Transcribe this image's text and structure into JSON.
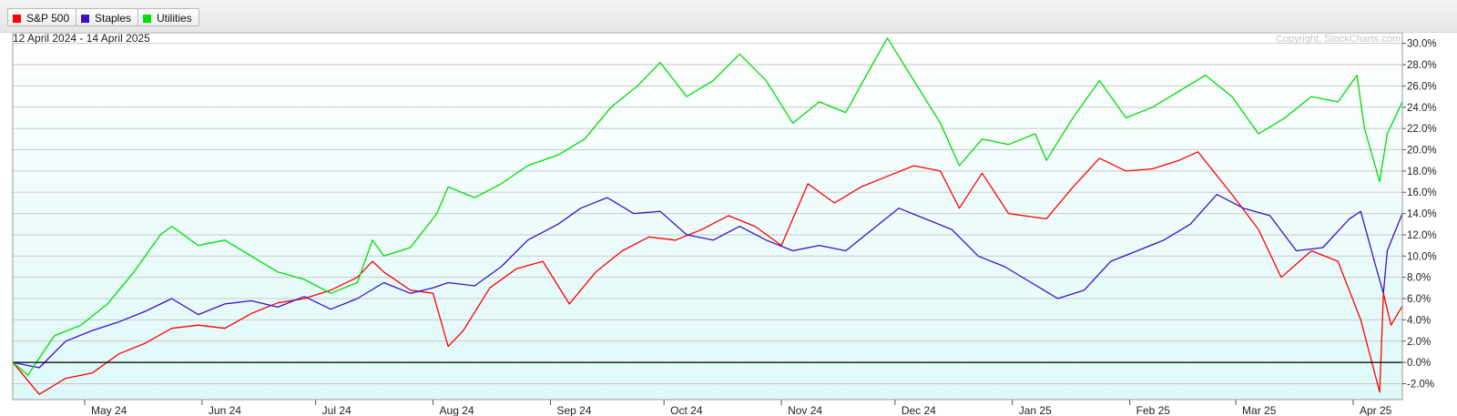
{
  "legend": [
    {
      "name": "S&P 500",
      "color": "#ff0000"
    },
    {
      "name": "Staples",
      "color": "#3a10c8"
    },
    {
      "name": "Utilities",
      "color": "#00dd00"
    }
  ],
  "chart_data": {
    "type": "line",
    "date_range": "12 April 2024 - 14 April 2025",
    "copyright": "Copyright, StockCharts.com",
    "y_unit": "percent change",
    "ylim": [
      -3.5,
      31.0
    ],
    "y_ticks": [
      -2,
      0,
      2,
      4,
      6,
      8,
      10,
      12,
      14,
      16,
      18,
      20,
      22,
      24,
      26,
      28,
      30
    ],
    "y_tick_labels": [
      "-2.0%",
      "0.0%",
      "2.0%",
      "4.0%",
      "6.0%",
      "8.0%",
      "10.0%",
      "12.0%",
      "14.0%",
      "16.0%",
      "18.0%",
      "20.0%",
      "22.0%",
      "24.0%",
      "26.0%",
      "28.0%",
      "30.0%"
    ],
    "baseline": 0,
    "x_range": [
      "2024-04-12",
      "2025-04-14"
    ],
    "x_ticks": [
      {
        "date": "2024-05-01",
        "label": "May 24"
      },
      {
        "date": "2024-06-01",
        "label": "Jun 24"
      },
      {
        "date": "2024-07-01",
        "label": "Jul 24"
      },
      {
        "date": "2024-08-01",
        "label": "Aug 24"
      },
      {
        "date": "2024-09-01",
        "label": "Sep 24"
      },
      {
        "date": "2024-10-01",
        "label": "Oct 24"
      },
      {
        "date": "2024-11-01",
        "label": "Nov 24"
      },
      {
        "date": "2024-12-01",
        "label": "Dec 24"
      },
      {
        "date": "2025-01-01",
        "label": "Jan 25"
      },
      {
        "date": "2025-02-01",
        "label": "Feb 25"
      },
      {
        "date": "2025-03-01",
        "label": "Mar 25"
      },
      {
        "date": "2025-04-01",
        "label": "Apr 25"
      }
    ],
    "grid": true,
    "legend_position": "top-left",
    "series": [
      {
        "name": "S&P 500",
        "color": "#ff0000",
        "points": [
          [
            "2024-04-12",
            0
          ],
          [
            "2024-04-19",
            -3
          ],
          [
            "2024-04-26",
            -1.5
          ],
          [
            "2024-05-03",
            -1
          ],
          [
            "2024-05-10",
            0.8
          ],
          [
            "2024-05-17",
            1.8
          ],
          [
            "2024-05-24",
            3.2
          ],
          [
            "2024-05-31",
            3.5
          ],
          [
            "2024-06-07",
            3.2
          ],
          [
            "2024-06-14",
            4.6
          ],
          [
            "2024-06-21",
            5.6
          ],
          [
            "2024-06-28",
            6.0
          ],
          [
            "2024-07-05",
            6.8
          ],
          [
            "2024-07-12",
            8.0
          ],
          [
            "2024-07-16",
            9.5
          ],
          [
            "2024-07-19",
            8.5
          ],
          [
            "2024-07-26",
            6.8
          ],
          [
            "2024-08-01",
            6.5
          ],
          [
            "2024-08-05",
            1.5
          ],
          [
            "2024-08-09",
            3.0
          ],
          [
            "2024-08-16",
            7.0
          ],
          [
            "2024-08-23",
            8.8
          ],
          [
            "2024-08-30",
            9.5
          ],
          [
            "2024-09-06",
            5.5
          ],
          [
            "2024-09-13",
            8.5
          ],
          [
            "2024-09-20",
            10.5
          ],
          [
            "2024-09-27",
            11.8
          ],
          [
            "2024-10-04",
            11.5
          ],
          [
            "2024-10-11",
            12.5
          ],
          [
            "2024-10-18",
            13.8
          ],
          [
            "2024-10-25",
            12.8
          ],
          [
            "2024-11-01",
            11.0
          ],
          [
            "2024-11-08",
            16.8
          ],
          [
            "2024-11-15",
            15.0
          ],
          [
            "2024-11-22",
            16.5
          ],
          [
            "2024-11-29",
            17.5
          ],
          [
            "2024-12-06",
            18.5
          ],
          [
            "2024-12-13",
            18.0
          ],
          [
            "2024-12-18",
            14.5
          ],
          [
            "2024-12-24",
            17.8
          ],
          [
            "2024-12-31",
            14.0
          ],
          [
            "2025-01-10",
            13.5
          ],
          [
            "2025-01-17",
            16.5
          ],
          [
            "2025-01-24",
            19.2
          ],
          [
            "2025-01-31",
            18.0
          ],
          [
            "2025-02-07",
            18.2
          ],
          [
            "2025-02-14",
            19.0
          ],
          [
            "2025-02-19",
            19.8
          ],
          [
            "2025-02-28",
            15.8
          ],
          [
            "2025-03-07",
            12.5
          ],
          [
            "2025-03-13",
            8.0
          ],
          [
            "2025-03-21",
            10.5
          ],
          [
            "2025-03-28",
            9.5
          ],
          [
            "2025-04-03",
            4.0
          ],
          [
            "2025-04-08",
            -2.8
          ],
          [
            "2025-04-09",
            6.5
          ],
          [
            "2025-04-11",
            3.5
          ],
          [
            "2025-04-14",
            5.3
          ]
        ]
      },
      {
        "name": "Staples",
        "color": "#3a10c8",
        "points": [
          [
            "2024-04-12",
            0
          ],
          [
            "2024-04-19",
            -0.5
          ],
          [
            "2024-04-26",
            2.0
          ],
          [
            "2024-05-03",
            3.0
          ],
          [
            "2024-05-10",
            3.8
          ],
          [
            "2024-05-17",
            4.8
          ],
          [
            "2024-05-24",
            6.0
          ],
          [
            "2024-05-31",
            4.5
          ],
          [
            "2024-06-07",
            5.5
          ],
          [
            "2024-06-14",
            5.8
          ],
          [
            "2024-06-21",
            5.2
          ],
          [
            "2024-06-28",
            6.2
          ],
          [
            "2024-07-05",
            5.0
          ],
          [
            "2024-07-12",
            6.0
          ],
          [
            "2024-07-19",
            7.5
          ],
          [
            "2024-07-26",
            6.5
          ],
          [
            "2024-08-01",
            7.0
          ],
          [
            "2024-08-05",
            7.5
          ],
          [
            "2024-08-12",
            7.2
          ],
          [
            "2024-08-19",
            9.0
          ],
          [
            "2024-08-26",
            11.5
          ],
          [
            "2024-09-03",
            13.0
          ],
          [
            "2024-09-09",
            14.5
          ],
          [
            "2024-09-16",
            15.5
          ],
          [
            "2024-09-23",
            14.0
          ],
          [
            "2024-09-30",
            14.2
          ],
          [
            "2024-10-07",
            12.0
          ],
          [
            "2024-10-14",
            11.5
          ],
          [
            "2024-10-21",
            12.8
          ],
          [
            "2024-10-28",
            11.5
          ],
          [
            "2024-11-04",
            10.5
          ],
          [
            "2024-11-11",
            11.0
          ],
          [
            "2024-11-18",
            10.5
          ],
          [
            "2024-11-25",
            12.5
          ],
          [
            "2024-12-02",
            14.5
          ],
          [
            "2024-12-09",
            13.5
          ],
          [
            "2024-12-16",
            12.5
          ],
          [
            "2024-12-23",
            10.0
          ],
          [
            "2024-12-30",
            9.0
          ],
          [
            "2025-01-06",
            7.5
          ],
          [
            "2025-01-13",
            6.0
          ],
          [
            "2025-01-20",
            6.8
          ],
          [
            "2025-01-27",
            9.5
          ],
          [
            "2025-02-03",
            10.5
          ],
          [
            "2025-02-10",
            11.5
          ],
          [
            "2025-02-17",
            13.0
          ],
          [
            "2025-02-24",
            15.8
          ],
          [
            "2025-03-03",
            14.5
          ],
          [
            "2025-03-10",
            13.8
          ],
          [
            "2025-03-17",
            10.5
          ],
          [
            "2025-03-24",
            10.8
          ],
          [
            "2025-03-31",
            13.5
          ],
          [
            "2025-04-03",
            14.2
          ],
          [
            "2025-04-07",
            9.0
          ],
          [
            "2025-04-09",
            6.5
          ],
          [
            "2025-04-10",
            10.5
          ],
          [
            "2025-04-14",
            14.0
          ]
        ]
      },
      {
        "name": "Utilities",
        "color": "#00dd00",
        "points": [
          [
            "2024-04-12",
            0
          ],
          [
            "2024-04-16",
            -1.2
          ],
          [
            "2024-04-23",
            2.5
          ],
          [
            "2024-04-30",
            3.5
          ],
          [
            "2024-05-07",
            5.5
          ],
          [
            "2024-05-14",
            8.5
          ],
          [
            "2024-05-21",
            12.0
          ],
          [
            "2024-05-24",
            12.8
          ],
          [
            "2024-05-31",
            11.0
          ],
          [
            "2024-06-07",
            11.5
          ],
          [
            "2024-06-14",
            10.0
          ],
          [
            "2024-06-21",
            8.5
          ],
          [
            "2024-06-28",
            7.8
          ],
          [
            "2024-07-05",
            6.5
          ],
          [
            "2024-07-12",
            7.5
          ],
          [
            "2024-07-16",
            11.5
          ],
          [
            "2024-07-19",
            10.0
          ],
          [
            "2024-07-26",
            10.8
          ],
          [
            "2024-08-02",
            14.0
          ],
          [
            "2024-08-05",
            16.5
          ],
          [
            "2024-08-12",
            15.5
          ],
          [
            "2024-08-19",
            16.8
          ],
          [
            "2024-08-26",
            18.5
          ],
          [
            "2024-09-03",
            19.5
          ],
          [
            "2024-09-10",
            21.0
          ],
          [
            "2024-09-17",
            24.0
          ],
          [
            "2024-09-24",
            26.0
          ],
          [
            "2024-09-30",
            28.2
          ],
          [
            "2024-10-07",
            25.0
          ],
          [
            "2024-10-14",
            26.5
          ],
          [
            "2024-10-21",
            29.0
          ],
          [
            "2024-10-28",
            26.5
          ],
          [
            "2024-11-04",
            22.5
          ],
          [
            "2024-11-11",
            24.5
          ],
          [
            "2024-11-18",
            23.5
          ],
          [
            "2024-11-25",
            28.0
          ],
          [
            "2024-11-29",
            30.5
          ],
          [
            "2024-12-06",
            26.5
          ],
          [
            "2024-12-13",
            22.5
          ],
          [
            "2024-12-18",
            18.5
          ],
          [
            "2024-12-24",
            21.0
          ],
          [
            "2024-12-31",
            20.5
          ],
          [
            "2025-01-07",
            21.5
          ],
          [
            "2025-01-10",
            19.0
          ],
          [
            "2025-01-17",
            23.0
          ],
          [
            "2025-01-24",
            26.5
          ],
          [
            "2025-01-31",
            23.0
          ],
          [
            "2025-02-07",
            24.0
          ],
          [
            "2025-02-14",
            25.5
          ],
          [
            "2025-02-21",
            27.0
          ],
          [
            "2025-02-28",
            25.0
          ],
          [
            "2025-03-07",
            21.5
          ],
          [
            "2025-03-14",
            23.0
          ],
          [
            "2025-03-21",
            25.0
          ],
          [
            "2025-03-28",
            24.5
          ],
          [
            "2025-04-02",
            27.0
          ],
          [
            "2025-04-04",
            22.0
          ],
          [
            "2025-04-08",
            17.0
          ],
          [
            "2025-04-10",
            21.5
          ],
          [
            "2025-04-14",
            24.5
          ]
        ]
      }
    ]
  }
}
